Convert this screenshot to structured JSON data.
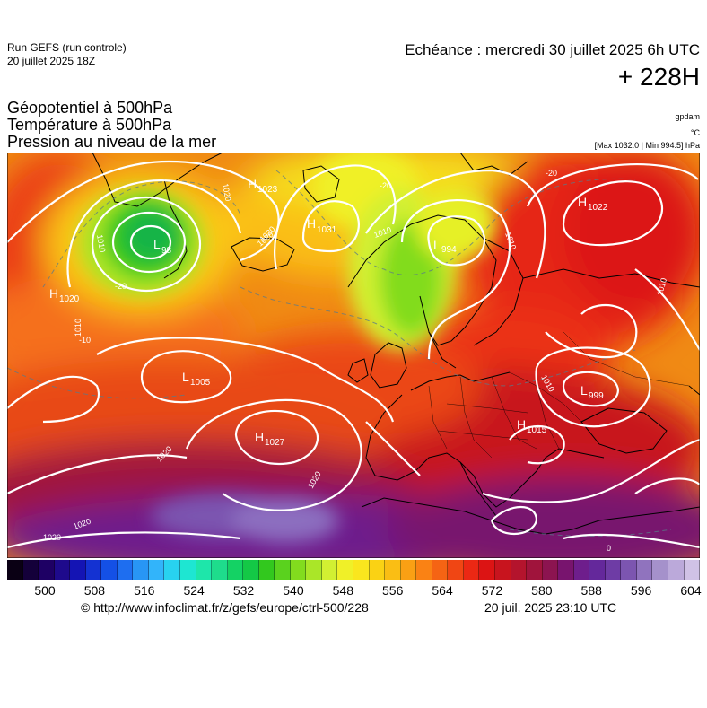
{
  "header": {
    "run_name": "Run GEFS (run controle)",
    "run_date": "20 juillet 2025 18Z",
    "echeance": "Echéance : mercredi 30 juillet 2025 6h UTC",
    "lead_time": "+ 228H",
    "param_1": "Géopotentiel à 500hPa",
    "param_2": "Température à 500hPa",
    "param_3": "Pression au niveau de la mer",
    "unit_geo": "gpdam",
    "unit_temp": "°C",
    "unit_press": "[Max 1032.0 | Min 994.5] hPa"
  },
  "pressure_systems": [
    {
      "type": "H",
      "value": "1023"
    },
    {
      "type": "H",
      "value": "1031"
    },
    {
      "type": "L",
      "value": "994"
    },
    {
      "type": "H",
      "value": "1022"
    },
    {
      "type": "L",
      "value": "98"
    },
    {
      "type": "H",
      "value": "1020"
    },
    {
      "type": "L",
      "value": "1005"
    },
    {
      "type": "H",
      "value": "1027"
    },
    {
      "type": "L",
      "value": "999"
    },
    {
      "type": "H",
      "value": "1015"
    }
  ],
  "isobar_labels": [
    "1010",
    "1020",
    "1010",
    "1020",
    "1010",
    "1010",
    "1010",
    "1020",
    "1020",
    "1020",
    "1020",
    "1010",
    "1020"
  ],
  "temp_labels": [
    "-20",
    "-20",
    "-20",
    "-10",
    "0"
  ],
  "color_scale": {
    "colors": [
      "#0a0014",
      "#14003a",
      "#1e0064",
      "#1e0a8c",
      "#1414b4",
      "#1432d2",
      "#1450e6",
      "#1e6ef0",
      "#2896f5",
      "#32b4fa",
      "#28d2f0",
      "#1ee6d2",
      "#1ee6aa",
      "#1edc8c",
      "#14d264",
      "#14c846",
      "#32c81e",
      "#5ad21e",
      "#82dc1e",
      "#aae628",
      "#d2f032",
      "#f0f028",
      "#fae61e",
      "#fad214",
      "#fabe14",
      "#faa014",
      "#fa8214",
      "#f56414",
      "#f04614",
      "#eb2814",
      "#dc1414",
      "#c8141e",
      "#b4142d",
      "#a0143c",
      "#8c1450",
      "#78146e",
      "#6e1e8c",
      "#64289b",
      "#6e3ca5",
      "#7c55b0",
      "#9073be",
      "#a591cb",
      "#bba9da",
      "#d0c2e6"
    ],
    "labels": [
      "500",
      "508",
      "516",
      "524",
      "532",
      "540",
      "548",
      "556",
      "564",
      "572",
      "580",
      "588",
      "596",
      "604"
    ]
  },
  "footer": {
    "url": "© http://www.infoclimat.fr/z/gefs/europe/ctrl-500/228",
    "generated": "20 juil. 2025 23:10 UTC"
  }
}
